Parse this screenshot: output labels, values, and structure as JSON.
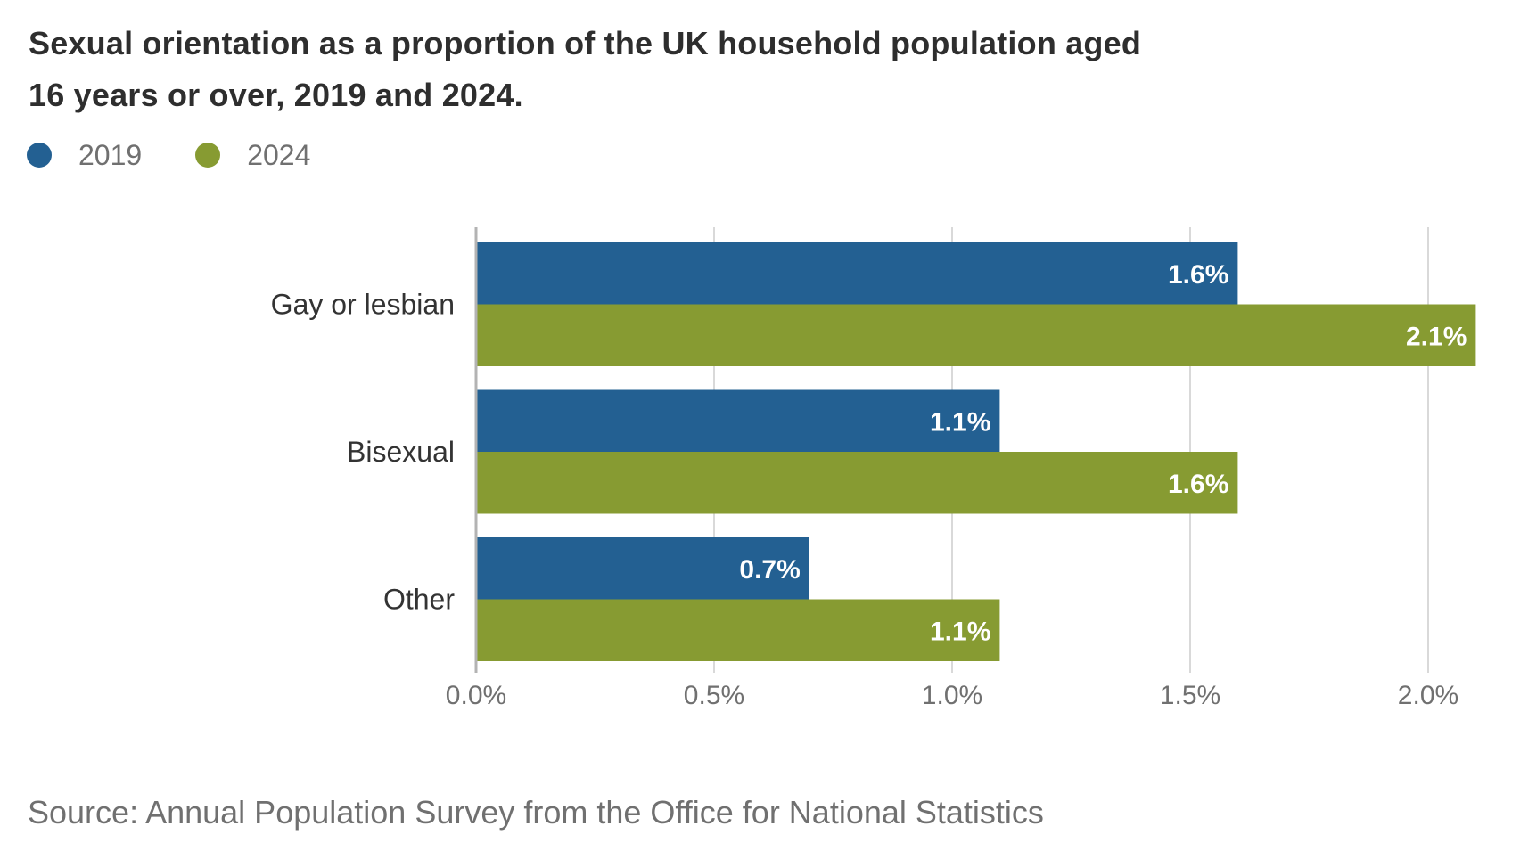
{
  "chart_data": {
    "type": "bar",
    "orientation": "horizontal",
    "title": "Sexual orientation as a proportion of the UK household population aged 16 years or over, 2019 and 2024.",
    "title_lines": [
      "Sexual orientation as a proportion of the UK household population aged",
      "16 years or over, 2019 and 2024."
    ],
    "categories": [
      "Gay or lesbian",
      "Bisexual",
      "Other"
    ],
    "series": [
      {
        "name": "2019",
        "color": "#236092",
        "values": [
          1.6,
          1.1,
          0.7
        ],
        "labels": [
          "1.6%",
          "1.1%",
          "0.7%"
        ]
      },
      {
        "name": "2024",
        "color": "#879B32",
        "values": [
          2.1,
          1.6,
          1.1
        ],
        "labels": [
          "2.1%",
          "1.6%",
          "1.1%"
        ]
      }
    ],
    "xlabel": "",
    "ylabel": "",
    "xlim": [
      0,
      2.1
    ],
    "xticks": [
      0,
      0.5,
      1.0,
      1.5,
      2.0
    ],
    "xtick_labels": [
      "0.0%",
      "0.5%",
      "1.0%",
      "1.5%",
      "2.0%"
    ],
    "grid": "vertical",
    "legend_position": "top-left"
  },
  "source": "Source: Annual Population Survey from the Office for National Statistics"
}
